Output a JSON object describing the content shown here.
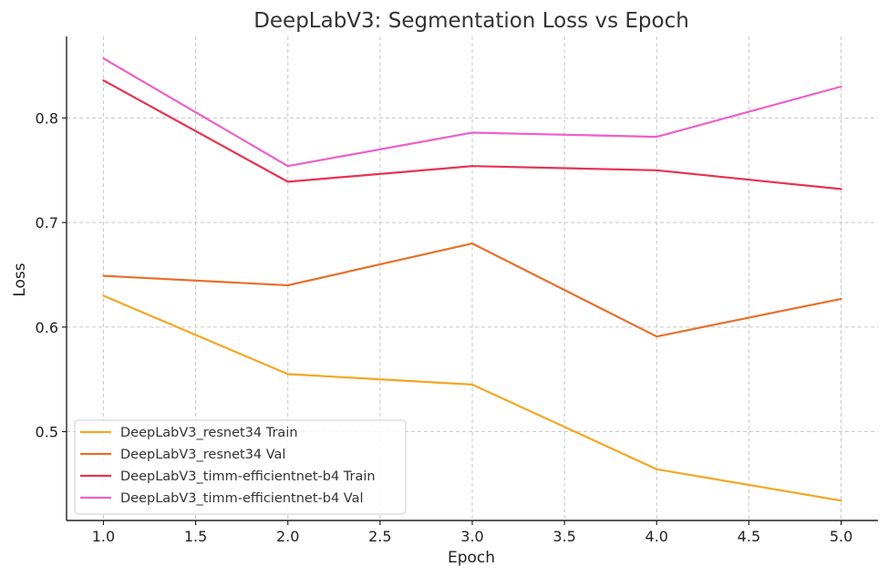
{
  "chart_data": {
    "type": "line",
    "title": "DeepLabV3: Segmentation Loss vs Epoch",
    "xlabel": "Epoch",
    "ylabel": "Loss",
    "x": [
      1.0,
      2.0,
      3.0,
      4.0,
      5.0
    ],
    "xlim": [
      0.8,
      5.2
    ],
    "ylim": [
      0.415,
      0.878
    ],
    "xticks": [
      1.0,
      1.5,
      2.0,
      2.5,
      3.0,
      3.5,
      4.0,
      4.5,
      5.0
    ],
    "yticks": [
      0.5,
      0.6,
      0.7,
      0.8
    ],
    "grid": true,
    "legend_position": "bottom-left",
    "series": [
      {
        "name": "DeepLabV3_resnet34 Train",
        "color": "#f5a623",
        "values": [
          0.63,
          0.555,
          0.545,
          0.464,
          0.434
        ]
      },
      {
        "name": "DeepLabV3_resnet34 Val",
        "color": "#e8702a",
        "values": [
          0.649,
          0.64,
          0.68,
          0.591,
          0.627
        ]
      },
      {
        "name": "DeepLabV3_timm-efficientnet-b4 Train",
        "color": "#e8334f",
        "values": [
          0.836,
          0.739,
          0.754,
          0.75,
          0.732
        ]
      },
      {
        "name": "DeepLabV3_timm-efficientnet-b4 Val",
        "color": "#ee5fc8",
        "values": [
          0.857,
          0.754,
          0.786,
          0.782,
          0.83
        ]
      }
    ]
  }
}
